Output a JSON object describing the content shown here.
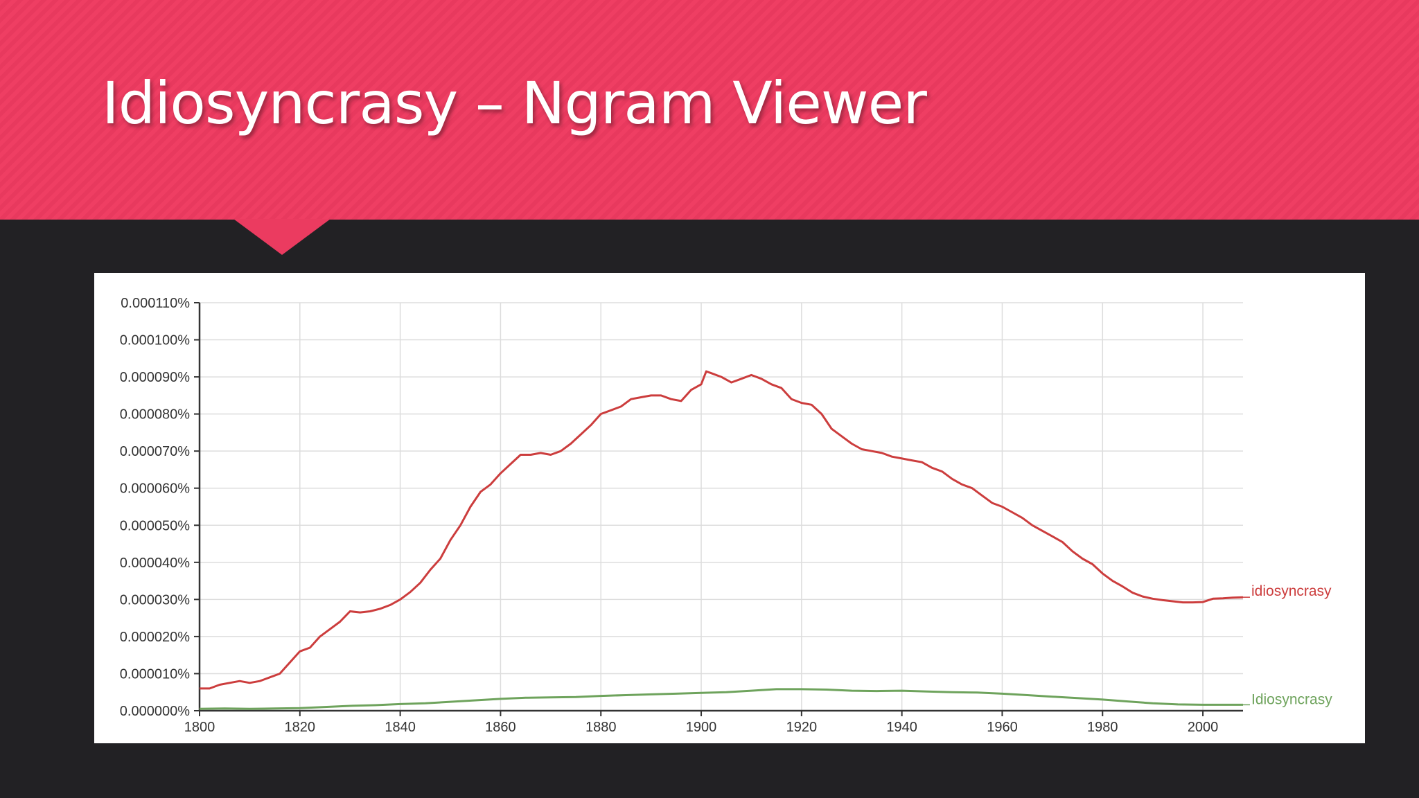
{
  "slide": {
    "title": "Idiosyncrasy – Ngram Viewer"
  },
  "colors": {
    "banner": "#ef3e63",
    "background": "#222124",
    "idiosyncrasy": "#cc3d3d",
    "Idiosyncrasy": "#6ea35c",
    "grid": "#dddddd"
  },
  "chart_data": {
    "type": "line",
    "title": "",
    "xlabel": "",
    "ylabel": "",
    "xlim": [
      1800,
      2008
    ],
    "ylim": [
      0,
      0.00011
    ],
    "grid": true,
    "legend": "line-end labels",
    "x_ticks": [
      1800,
      1820,
      1840,
      1860,
      1880,
      1900,
      1920,
      1940,
      1960,
      1980,
      2000
    ],
    "y_ticks": [
      "0.000000%",
      "0.000010%",
      "0.000020%",
      "0.000030%",
      "0.000040%",
      "0.000050%",
      "0.000060%",
      "0.000070%",
      "0.000080%",
      "0.000090%",
      "0.000100%",
      "0.000110%"
    ],
    "series": [
      {
        "name": "idiosyncrasy",
        "color": "#cc3d3d",
        "x": [
          1800,
          1802,
          1804,
          1806,
          1808,
          1810,
          1812,
          1814,
          1816,
          1818,
          1820,
          1822,
          1824,
          1826,
          1828,
          1830,
          1832,
          1834,
          1836,
          1838,
          1840,
          1842,
          1844,
          1846,
          1848,
          1850,
          1852,
          1854,
          1856,
          1858,
          1860,
          1862,
          1864,
          1866,
          1868,
          1870,
          1872,
          1874,
          1876,
          1878,
          1880,
          1882,
          1884,
          1886,
          1888,
          1890,
          1892,
          1894,
          1896,
          1898,
          1900,
          1901,
          1902,
          1904,
          1906,
          1908,
          1910,
          1912,
          1914,
          1916,
          1918,
          1920,
          1922,
          1924,
          1926,
          1928,
          1930,
          1932,
          1934,
          1936,
          1938,
          1940,
          1942,
          1944,
          1946,
          1948,
          1950,
          1952,
          1954,
          1956,
          1958,
          1960,
          1962,
          1964,
          1966,
          1968,
          1970,
          1972,
          1974,
          1976,
          1978,
          1980,
          1982,
          1984,
          1986,
          1988,
          1990,
          1992,
          1994,
          1996,
          1998,
          2000,
          2002,
          2004,
          2006,
          2008
        ],
        "values": [
          6e-06,
          6e-06,
          7e-06,
          7.5e-06,
          8e-06,
          7.5e-06,
          8e-06,
          9e-06,
          1e-05,
          1.3e-05,
          1.6e-05,
          1.7e-05,
          2e-05,
          2.2e-05,
          2.4e-05,
          2.68e-05,
          2.65e-05,
          2.68e-05,
          2.75e-05,
          2.85e-05,
          3e-05,
          3.2e-05,
          3.45e-05,
          3.8e-05,
          4.1e-05,
          4.6e-05,
          5e-05,
          5.5e-05,
          5.9e-05,
          6.1e-05,
          6.4e-05,
          6.65e-05,
          6.9e-05,
          6.9e-05,
          6.95e-05,
          6.9e-05,
          7e-05,
          7.2e-05,
          7.45e-05,
          7.7e-05,
          8e-05,
          8.1e-05,
          8.2e-05,
          8.4e-05,
          8.45e-05,
          8.5e-05,
          8.5e-05,
          8.4e-05,
          8.35e-05,
          8.65e-05,
          8.8e-05,
          9.15e-05,
          9.1e-05,
          9e-05,
          8.85e-05,
          8.95e-05,
          9.05e-05,
          8.95e-05,
          8.8e-05,
          8.7e-05,
          8.4e-05,
          8.3e-05,
          8.25e-05,
          8e-05,
          7.6e-05,
          7.4e-05,
          7.2e-05,
          7.05e-05,
          7e-05,
          6.95e-05,
          6.85e-05,
          6.8e-05,
          6.75e-05,
          6.7e-05,
          6.55e-05,
          6.45e-05,
          6.25e-05,
          6.1e-05,
          6e-05,
          5.8e-05,
          5.6e-05,
          5.5e-05,
          5.35e-05,
          5.2e-05,
          5e-05,
          4.85e-05,
          4.7e-05,
          4.55e-05,
          4.3e-05,
          4.1e-05,
          3.95e-05,
          3.7e-05,
          3.5e-05,
          3.35e-05,
          3.18e-05,
          3.08e-05,
          3.02e-05,
          2.98e-05,
          2.95e-05,
          2.92e-05,
          2.92e-05,
          2.93e-05,
          3.02e-05,
          3.03e-05,
          3.05e-05,
          3.06e-05
        ]
      },
      {
        "name": "Idiosyncrasy",
        "color": "#6ea35c",
        "x": [
          1800,
          1805,
          1810,
          1815,
          1820,
          1825,
          1830,
          1835,
          1840,
          1845,
          1850,
          1855,
          1860,
          1865,
          1870,
          1875,
          1880,
          1885,
          1890,
          1895,
          1900,
          1905,
          1910,
          1915,
          1920,
          1925,
          1930,
          1935,
          1940,
          1945,
          1950,
          1955,
          1960,
          1965,
          1970,
          1975,
          1980,
          1985,
          1990,
          1995,
          2000,
          2005,
          2008
        ],
        "values": [
          5e-07,
          6e-07,
          5e-07,
          6e-07,
          7e-07,
          1e-06,
          1.3e-06,
          1.5e-06,
          1.8e-06,
          2e-06,
          2.4e-06,
          2.8e-06,
          3.2e-06,
          3.5e-06,
          3.6e-06,
          3.7e-06,
          4e-06,
          4.2e-06,
          4.4e-06,
          4.6e-06,
          4.8e-06,
          5e-06,
          5.4e-06,
          5.8e-06,
          5.8e-06,
          5.7e-06,
          5.4e-06,
          5.3e-06,
          5.4e-06,
          5.2e-06,
          5e-06,
          4.9e-06,
          4.6e-06,
          4.2e-06,
          3.8e-06,
          3.4e-06,
          3e-06,
          2.5e-06,
          2e-06,
          1.7e-06,
          1.6e-06,
          1.6e-06,
          1.6e-06
        ]
      }
    ]
  }
}
